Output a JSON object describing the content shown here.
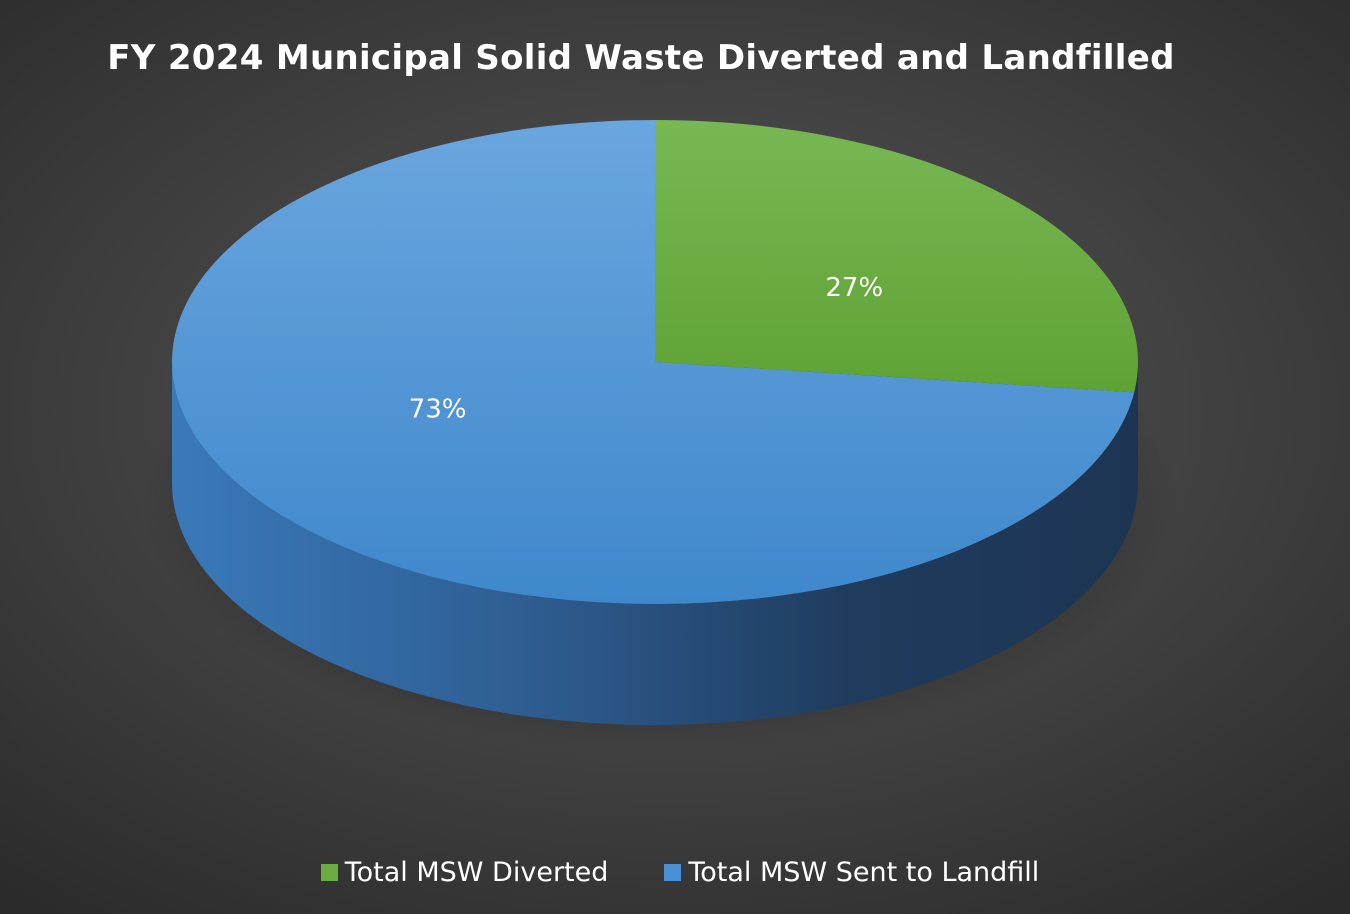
{
  "chart_data": {
    "type": "pie",
    "title": "FY 2024 Municipal Solid Waste Diverted and Landfilled",
    "style": "3d",
    "legend_position": "bottom",
    "slices": [
      {
        "name": "Total MSW Diverted",
        "value": 27,
        "label": "27%",
        "color": "#6aac3f"
      },
      {
        "name": "Total MSW Sent to Landfill",
        "value": 73,
        "label": "73%",
        "color": "#4a90d6"
      }
    ]
  }
}
